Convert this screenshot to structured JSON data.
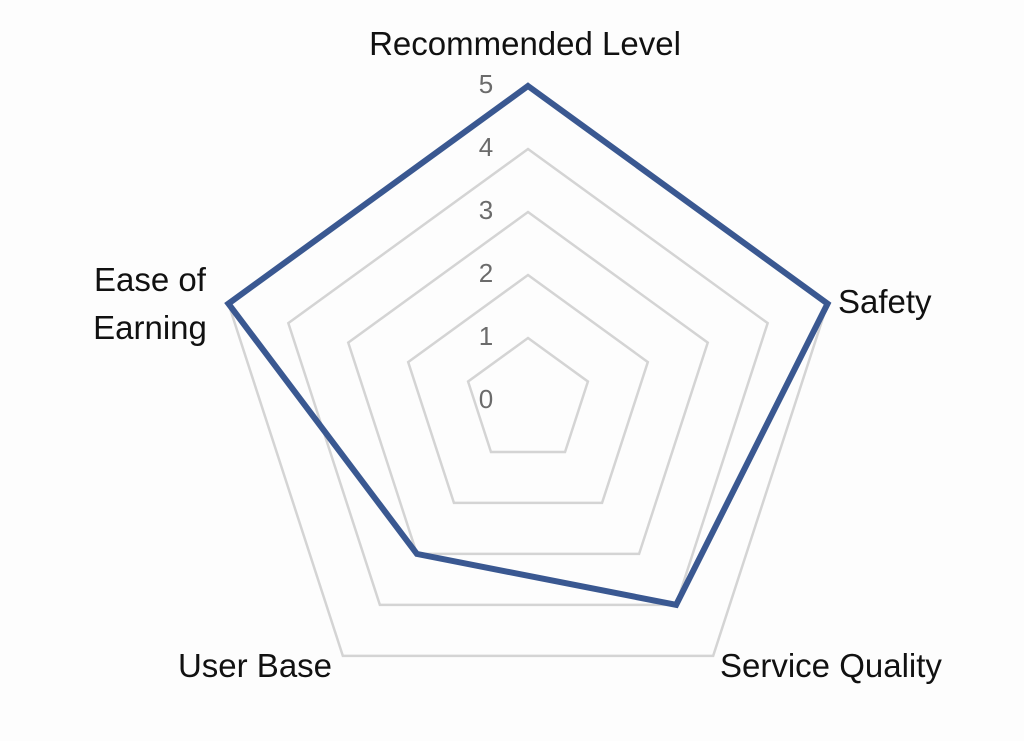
{
  "chart_data": {
    "type": "radar",
    "categories": [
      "Recommended Level",
      "Safety",
      "Service Quality",
      "User Base",
      "Ease of Earning"
    ],
    "values": [
      5,
      5,
      4,
      3,
      5
    ],
    "color": "#3a5891",
    "rlim": [
      0,
      5
    ],
    "rticks": [
      0,
      1,
      2,
      3,
      4,
      5
    ],
    "grid": true
  }
}
